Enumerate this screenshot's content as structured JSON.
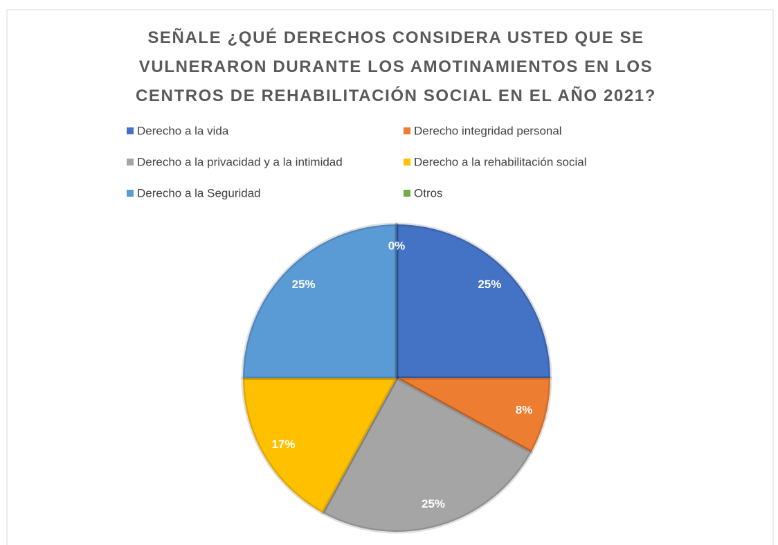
{
  "chart_data": {
    "type": "pie",
    "title": "SEÑALE ¿QUÉ DERECHOS CONSIDERA USTED QUE SE VULNERARON DURANTE LOS AMOTINAMIENTOS EN LOS CENTROS DE REHABILITACIÓN SOCIAL EN EL AÑO 2021?",
    "categories": [
      "Derecho a la vida",
      "Derecho integridad personal",
      "Derecho a la privacidad y a la intimidad",
      "Derecho a la rehabilitación social",
      "Derecho a la Seguridad",
      "Otros"
    ],
    "values": [
      25,
      8,
      25,
      17,
      25,
      0
    ],
    "value_labels": [
      "25%",
      "8%",
      "25%",
      "17%",
      "25%",
      "0%"
    ],
    "colors": [
      "#4472c4",
      "#ed7d31",
      "#a5a5a5",
      "#ffc000",
      "#5b9bd5",
      "#70ad47"
    ],
    "legend": "top"
  }
}
